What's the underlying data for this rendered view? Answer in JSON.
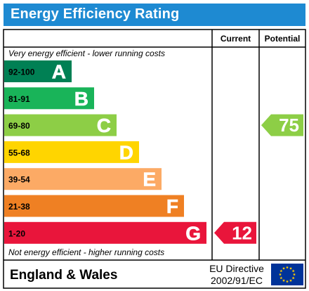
{
  "title": "Energy Efficiency Rating",
  "chart_data": {
    "type": "bar",
    "title": "Energy Efficiency Rating",
    "column_headers": {
      "current": "Current",
      "potential": "Potential"
    },
    "top_note": "Very energy efficient - lower running costs",
    "bottom_note": "Not energy efficient - higher running costs",
    "bands": [
      {
        "range": "92-100",
        "letter": "A",
        "color": "#008054",
        "range_color": "#000000"
      },
      {
        "range": "81-91",
        "letter": "B",
        "color": "#19b459",
        "range_color": "#000000"
      },
      {
        "range": "69-80",
        "letter": "C",
        "color": "#8dce46",
        "range_color": "#000000"
      },
      {
        "range": "55-68",
        "letter": "D",
        "color": "#ffd500",
        "range_color": "#000000"
      },
      {
        "range": "39-54",
        "letter": "E",
        "color": "#fcaa65",
        "range_color": "#000000"
      },
      {
        "range": "21-38",
        "letter": "F",
        "color": "#ef8023",
        "range_color": "#000000"
      },
      {
        "range": "1-20",
        "letter": "G",
        "color": "#e9153b",
        "range_color": "#000000"
      }
    ],
    "current": {
      "value": 12,
      "band": "G",
      "color": "#e9153b"
    },
    "potential": {
      "value": 75,
      "band": "C",
      "color": "#8dce46"
    }
  },
  "footer": {
    "region": "England & Wales",
    "directive_line1": "EU Directive",
    "directive_line2": "2002/91/EC",
    "flag_color": "#003399",
    "star_color": "#ffcc00"
  }
}
